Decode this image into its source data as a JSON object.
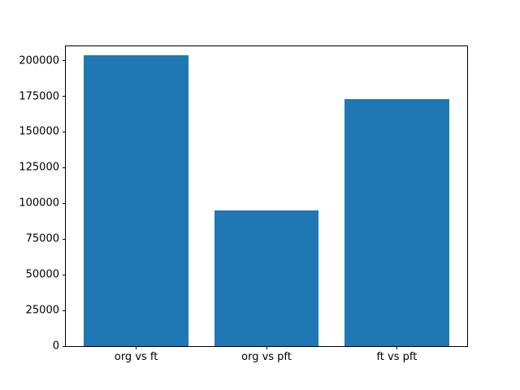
{
  "chart_data": {
    "type": "bar",
    "title": "",
    "categories": [
      "org vs ft",
      "org vs pft",
      "ft vs pft"
    ],
    "values": [
      204000,
      95000,
      173000
    ],
    "xlabel": "",
    "ylabel": "",
    "ylim": [
      0,
      210000
    ],
    "yticks": [
      0,
      25000,
      50000,
      75000,
      100000,
      125000,
      150000,
      175000,
      200000
    ],
    "bar_color": "#1f77b4",
    "axis_color": "#000000",
    "background_color": "#ffffff",
    "grid": false,
    "legend": null,
    "bar_width_fraction": 0.8
  }
}
